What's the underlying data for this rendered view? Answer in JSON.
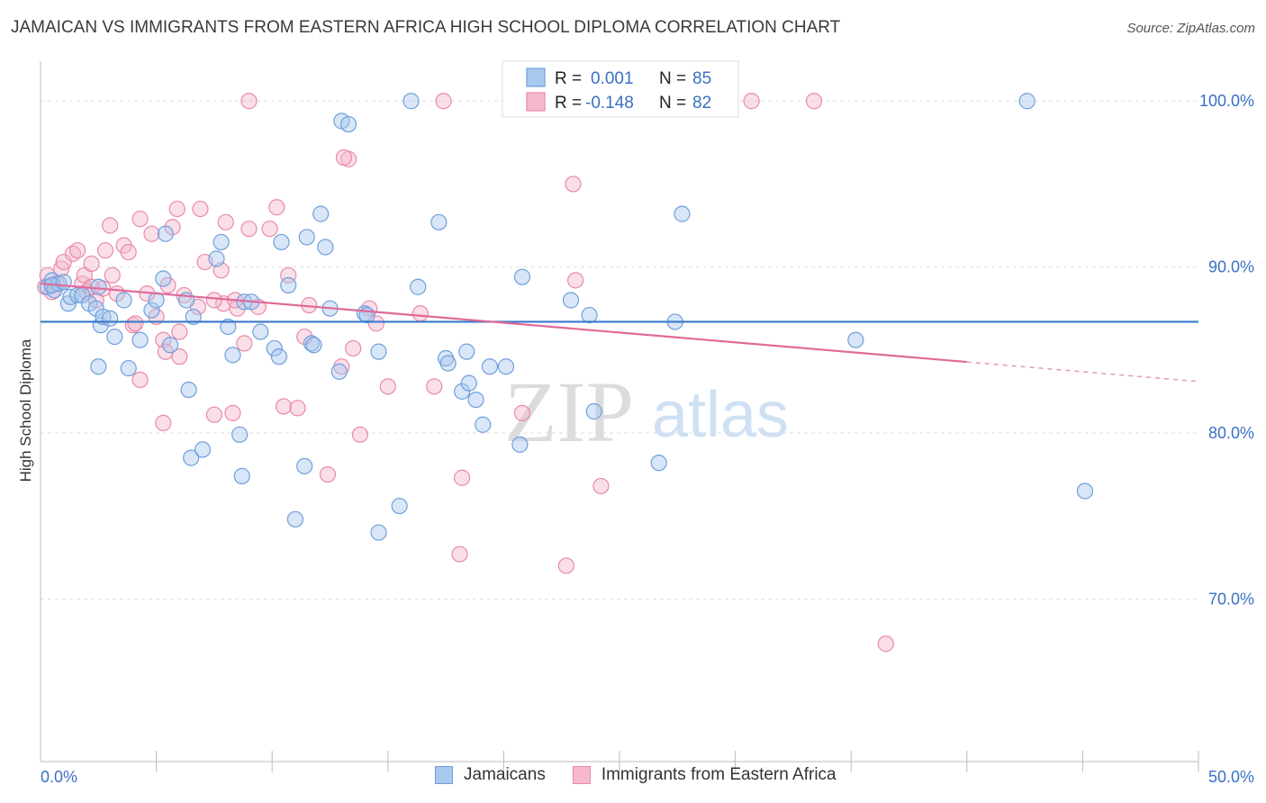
{
  "title": "JAMAICAN VS IMMIGRANTS FROM EASTERN AFRICA HIGH SCHOOL DIPLOMA CORRELATION CHART",
  "source": "Source: ZipAtlas.com",
  "watermark": {
    "zip": "ZIP",
    "atlas": "atlas"
  },
  "colors": {
    "blue_fill": "#a9c8ee",
    "blue_stroke": "#6f9fdc",
    "blue_line": "#3a78c9",
    "pink_fill": "#f5b8cc",
    "pink_stroke": "#e98aaa",
    "pink_line": "#e0699a",
    "value_blue": "#3a70c4",
    "grid": "#dddddd"
  },
  "legend_top": {
    "rows": [
      {
        "r_label": "R =",
        "r_value": "0.001",
        "n_label": "N =",
        "n_value": "85"
      },
      {
        "r_label": "R =",
        "r_value": "-0.148",
        "n_label": "N =",
        "n_value": "82"
      }
    ]
  },
  "legend_bottom": {
    "series1": "Jamaicans",
    "series2": "Immigrants from Eastern Africa"
  },
  "chart_data": {
    "type": "scatter",
    "title": "JAMAICAN VS IMMIGRANTS FROM EASTERN AFRICA HIGH SCHOOL DIPLOMA CORRELATION CHART",
    "xlabel": "",
    "ylabel": "High School Diploma",
    "xlim": [
      0,
      50
    ],
    "ylim": [
      60.2,
      102.4
    ],
    "x_tick_labels": [
      "0.0%",
      "50.0%"
    ],
    "y_ticks": [
      70,
      80,
      90,
      100
    ],
    "y_tick_labels": [
      "70.0%",
      "80.0%",
      "90.0%",
      "100.0%"
    ],
    "grid": true,
    "series": [
      {
        "name": "Jamaicans",
        "color": "#a9c8ee",
        "r": 0.001,
        "n": 85,
        "trend": {
          "x": [
            0,
            50
          ],
          "y": [
            86.7,
            86.7
          ],
          "dashed_from": null
        },
        "points": [
          [
            0.3,
            88.8
          ],
          [
            0.5,
            89.2
          ],
          [
            0.6,
            88.6
          ],
          [
            0.8,
            89.0
          ],
          [
            1.2,
            87.8
          ],
          [
            1.3,
            88.2
          ],
          [
            1.6,
            88.3
          ],
          [
            1.8,
            88.3
          ],
          [
            2.1,
            87.8
          ],
          [
            2.4,
            87.5
          ],
          [
            2.5,
            88.8
          ],
          [
            2.6,
            86.5
          ],
          [
            2.7,
            87.0
          ],
          [
            2.5,
            84.0
          ],
          [
            3.0,
            86.9
          ],
          [
            3.2,
            85.8
          ],
          [
            3.8,
            83.9
          ],
          [
            3.6,
            88.0
          ],
          [
            4.3,
            85.6
          ],
          [
            4.8,
            87.4
          ],
          [
            5.0,
            88.0
          ],
          [
            5.4,
            92.0
          ],
          [
            5.6,
            85.3
          ],
          [
            5.3,
            89.3
          ],
          [
            6.4,
            82.6
          ],
          [
            6.5,
            78.5
          ],
          [
            7.0,
            79.0
          ],
          [
            6.3,
            88.0
          ],
          [
            6.6,
            87.0
          ],
          [
            7.8,
            91.5
          ],
          [
            7.6,
            90.5
          ],
          [
            8.1,
            86.4
          ],
          [
            8.3,
            84.7
          ],
          [
            8.6,
            79.9
          ],
          [
            8.7,
            77.4
          ],
          [
            8.8,
            87.9
          ],
          [
            9.5,
            86.1
          ],
          [
            10.1,
            85.1
          ],
          [
            10.3,
            84.6
          ],
          [
            10.4,
            91.5
          ],
          [
            10.7,
            88.9
          ],
          [
            11.0,
            74.8
          ],
          [
            11.4,
            78.0
          ],
          [
            11.5,
            91.8
          ],
          [
            11.7,
            85.4
          ],
          [
            11.8,
            85.3
          ],
          [
            12.1,
            93.2
          ],
          [
            12.3,
            91.2
          ],
          [
            12.5,
            87.5
          ],
          [
            12.9,
            83.7
          ],
          [
            13.0,
            98.8
          ],
          [
            13.3,
            98.6
          ],
          [
            14.0,
            87.2
          ],
          [
            14.1,
            87.1
          ],
          [
            14.6,
            84.9
          ],
          [
            14.6,
            74.0
          ],
          [
            15.5,
            75.6
          ],
          [
            16.0,
            100.0
          ],
          [
            16.3,
            88.8
          ],
          [
            17.2,
            92.7
          ],
          [
            17.5,
            84.5
          ],
          [
            17.6,
            84.2
          ],
          [
            18.2,
            82.5
          ],
          [
            18.5,
            83.0
          ],
          [
            18.8,
            82.0
          ],
          [
            18.4,
            84.9
          ],
          [
            19.1,
            80.5
          ],
          [
            19.4,
            84.0
          ],
          [
            20.7,
            79.3
          ],
          [
            20.8,
            89.4
          ],
          [
            22.9,
            88.0
          ],
          [
            23.7,
            87.1
          ],
          [
            23.9,
            81.3
          ],
          [
            25.4,
            99.9
          ],
          [
            26.7,
            78.2
          ],
          [
            27.4,
            86.7
          ],
          [
            27.7,
            93.2
          ],
          [
            28.3,
            99.9
          ],
          [
            35.2,
            85.6
          ],
          [
            42.6,
            100.0
          ],
          [
            45.1,
            76.5
          ],
          [
            0.5,
            88.9
          ],
          [
            1.0,
            89.1
          ],
          [
            20.1,
            84.0
          ],
          [
            9.1,
            87.9
          ]
        ]
      },
      {
        "name": "Immigrants from Eastern Africa",
        "color": "#f5b8cc",
        "r": -0.148,
        "n": 82,
        "trend": {
          "x": [
            0,
            50
          ],
          "y": [
            89.0,
            83.1
          ],
          "dashed_from": 40
        },
        "points": [
          [
            0.2,
            88.8
          ],
          [
            0.3,
            89.5
          ],
          [
            0.5,
            88.5
          ],
          [
            0.7,
            89.0
          ],
          [
            0.9,
            89.9
          ],
          [
            1.0,
            90.3
          ],
          [
            1.4,
            90.8
          ],
          [
            1.6,
            91.0
          ],
          [
            1.8,
            89.0
          ],
          [
            1.9,
            89.5
          ],
          [
            2.0,
            88.5
          ],
          [
            2.2,
            90.2
          ],
          [
            2.4,
            88.0
          ],
          [
            2.7,
            88.7
          ],
          [
            2.8,
            91.0
          ],
          [
            3.0,
            92.5
          ],
          [
            3.1,
            89.5
          ],
          [
            3.3,
            88.4
          ],
          [
            3.6,
            91.3
          ],
          [
            3.8,
            90.9
          ],
          [
            4.0,
            86.5
          ],
          [
            4.3,
            92.9
          ],
          [
            4.6,
            88.4
          ],
          [
            4.8,
            92.0
          ],
          [
            5.0,
            87.0
          ],
          [
            5.3,
            85.6
          ],
          [
            5.5,
            88.9
          ],
          [
            5.7,
            92.4
          ],
          [
            5.9,
            93.5
          ],
          [
            6.0,
            86.1
          ],
          [
            6.2,
            88.3
          ],
          [
            6.8,
            87.6
          ],
          [
            7.1,
            90.3
          ],
          [
            7.5,
            81.1
          ],
          [
            7.9,
            87.8
          ],
          [
            8.0,
            92.7
          ],
          [
            8.3,
            81.2
          ],
          [
            8.5,
            87.5
          ],
          [
            8.8,
            85.4
          ],
          [
            9.0,
            92.3
          ],
          [
            9.4,
            87.6
          ],
          [
            9.9,
            92.3
          ],
          [
            10.2,
            93.6
          ],
          [
            10.5,
            81.6
          ],
          [
            10.7,
            89.5
          ],
          [
            11.1,
            81.5
          ],
          [
            11.4,
            85.8
          ],
          [
            11.6,
            87.7
          ],
          [
            12.4,
            77.5
          ],
          [
            13.0,
            84.0
          ],
          [
            13.3,
            96.5
          ],
          [
            13.5,
            85.1
          ],
          [
            13.8,
            79.9
          ],
          [
            14.2,
            87.5
          ],
          [
            14.5,
            86.6
          ],
          [
            15.0,
            82.8
          ],
          [
            16.4,
            87.2
          ],
          [
            17.0,
            82.8
          ],
          [
            18.1,
            72.7
          ],
          [
            18.2,
            77.3
          ],
          [
            20.8,
            81.2
          ],
          [
            22.7,
            72.0
          ],
          [
            23.0,
            95.0
          ],
          [
            23.1,
            89.2
          ],
          [
            24.2,
            76.8
          ],
          [
            28.4,
            100.0
          ],
          [
            30.7,
            100.0
          ],
          [
            33.4,
            100.0
          ],
          [
            36.5,
            67.3
          ],
          [
            9.0,
            100.0
          ],
          [
            17.4,
            100.0
          ],
          [
            13.1,
            96.6
          ],
          [
            6.9,
            93.5
          ],
          [
            4.1,
            86.6
          ],
          [
            5.4,
            84.9
          ],
          [
            6.0,
            84.6
          ],
          [
            4.3,
            83.2
          ],
          [
            5.3,
            80.6
          ],
          [
            7.5,
            88.0
          ],
          [
            2.2,
            88.8
          ],
          [
            7.8,
            89.8
          ],
          [
            8.4,
            88.0
          ]
        ]
      }
    ]
  }
}
